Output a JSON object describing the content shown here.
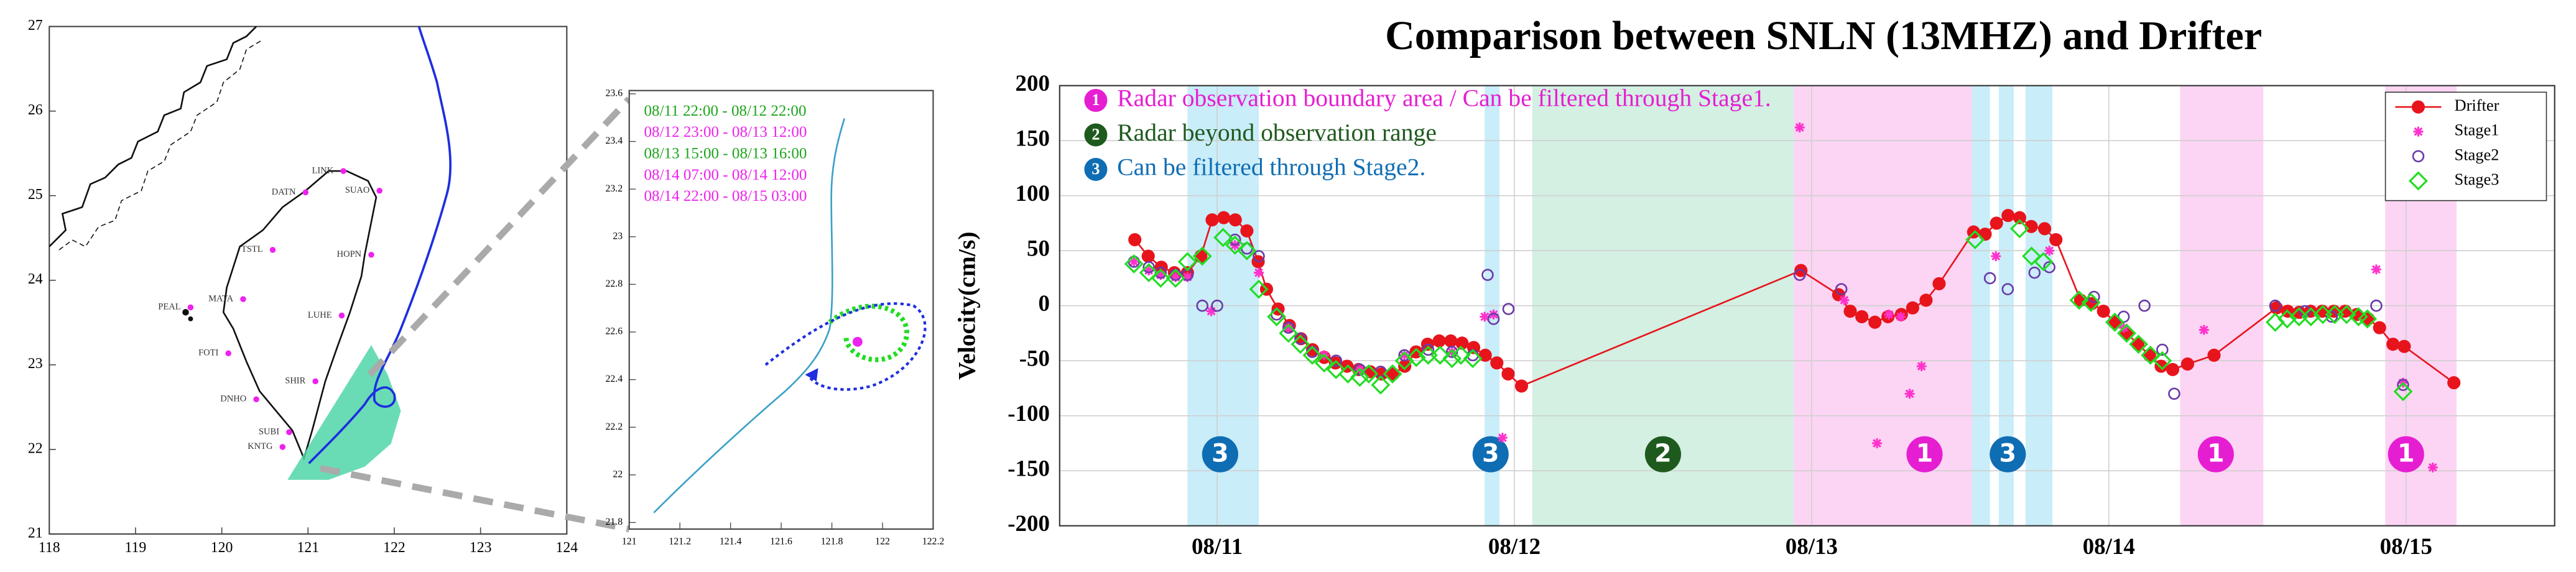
{
  "map": {
    "xticks": [
      118,
      119,
      120,
      121,
      122,
      123,
      124
    ],
    "yticks": [
      21,
      22,
      23,
      24,
      25,
      26,
      27
    ],
    "stations": [
      "DATN",
      "LINK",
      "SUAO",
      "HOPN",
      "TSTL",
      "MATA",
      "PEAL",
      "FOTI",
      "LUHE",
      "SHIR",
      "DNHO",
      "SUBI",
      "KNTG"
    ]
  },
  "zoom": {
    "xticks": [
      121,
      121.2,
      121.4,
      121.6,
      121.8,
      122,
      122.2
    ],
    "yticks": [
      21.8,
      22,
      22.2,
      22.4,
      22.6,
      22.8,
      23,
      23.2,
      23.4,
      23.6
    ],
    "legend": [
      {
        "text": "08/11 22:00 - 08/12 22:00",
        "color": "#1ea51e"
      },
      {
        "text": "08/12 23:00 - 08/13 12:00",
        "color": "#ee22ee"
      },
      {
        "text": "08/13 15:00 - 08/13 16:00",
        "color": "#1ea51e"
      },
      {
        "text": "08/14 07:00 - 08/14 12:00",
        "color": "#ee22ee"
      },
      {
        "text": "08/14 22:00 - 08/15 03:00",
        "color": "#ee22ee"
      }
    ]
  },
  "chart_data": {
    "type": "line",
    "title": "Comparison between SNLN (13MHZ) and Drifter",
    "y_label": "Velocity(cm/s)",
    "xlim": [
      10.47,
      15.5
    ],
    "xticks": [
      {
        "value": 11,
        "label": "08/11"
      },
      {
        "value": 12,
        "label": "08/12"
      },
      {
        "value": 13,
        "label": "08/13"
      },
      {
        "value": 14,
        "label": "08/14"
      },
      {
        "value": 15,
        "label": "08/15"
      }
    ],
    "ylim": [
      -200,
      200
    ],
    "yticks": [
      -200,
      -150,
      -100,
      -50,
      0,
      50,
      100,
      150,
      200
    ],
    "grid": true,
    "legend": "upper right",
    "bands": [
      {
        "x": [
          10.9,
          11.14
        ],
        "color": "#c9edf9"
      },
      {
        "x": [
          11.9,
          11.95
        ],
        "color": "#c9edf9"
      },
      {
        "x": [
          12.06,
          12.94
        ],
        "color": "#d3f0e3"
      },
      {
        "x": [
          12.94,
          13.54
        ],
        "color": "#fbd5f3"
      },
      {
        "x": [
          13.54,
          13.6
        ],
        "color": "#c9edf9"
      },
      {
        "x": [
          13.63,
          13.68
        ],
        "color": "#c9edf9"
      },
      {
        "x": [
          13.72,
          13.81
        ],
        "color": "#c9edf9"
      },
      {
        "x": [
          14.24,
          14.52
        ],
        "color": "#fbd5f3"
      },
      {
        "x": [
          14.93,
          15.17
        ],
        "color": "#fbd5f3"
      }
    ],
    "band_labels": [
      {
        "x": 11.01,
        "y": -135,
        "label": "3",
        "color": "#0f6db3"
      },
      {
        "x": 11.92,
        "y": -135,
        "label": "3",
        "color": "#0f6db3"
      },
      {
        "x": 12.5,
        "y": -135,
        "label": "2",
        "color": "#1e5a1e"
      },
      {
        "x": 13.38,
        "y": -135,
        "label": "1",
        "color": "#e61ed2"
      },
      {
        "x": 13.66,
        "y": -135,
        "label": "3",
        "color": "#0f6db3"
      },
      {
        "x": 14.36,
        "y": -135,
        "label": "1",
        "color": "#e61ed2"
      },
      {
        "x": 15.0,
        "y": -135,
        "label": "1",
        "color": "#e61ed2"
      }
    ],
    "annotations": [
      {
        "number": "1",
        "text": "Radar observation boundary area / Can be filtered through Stage1.",
        "color": "#e61ed2"
      },
      {
        "number": "2",
        "text": "Radar beyond observation range",
        "color": "#1e5a1e"
      },
      {
        "number": "3",
        "text": "Can be filtered through Stage2.",
        "color": "#0f6db3"
      }
    ],
    "series": [
      {
        "name": "Drifter",
        "color": "#e8141c",
        "marker": "circle-filled",
        "line": true,
        "x": [
          10.723,
          10.768,
          10.812,
          10.856,
          10.9,
          10.945,
          10.983,
          11.022,
          11.061,
          11.1,
          11.138,
          11.166,
          11.205,
          11.243,
          11.282,
          11.321,
          11.36,
          11.398,
          11.437,
          11.476,
          11.515,
          11.553,
          11.592,
          11.631,
          11.669,
          11.708,
          11.747,
          11.786,
          11.824,
          11.863,
          11.902,
          11.941,
          11.979,
          12.024,
          12.964,
          13.091,
          13.13,
          13.169,
          13.213,
          13.257,
          13.302,
          13.34,
          13.385,
          13.429,
          13.545,
          13.584,
          13.622,
          13.661,
          13.7,
          13.739,
          13.784,
          13.822,
          13.905,
          13.943,
          13.982,
          14.021,
          14.06,
          14.098,
          14.137,
          14.176,
          14.215,
          14.265,
          14.354,
          14.564,
          14.602,
          14.641,
          14.679,
          14.718,
          14.757,
          14.795,
          14.834,
          14.873,
          14.911,
          14.956,
          14.994,
          15.161
        ],
        "values": [
          60,
          45,
          35,
          30,
          30,
          45,
          78,
          80,
          78,
          68,
          40,
          15,
          -3,
          -18,
          -30,
          -40,
          -47,
          -52,
          -55,
          -58,
          -60,
          -62,
          -62,
          -55,
          -42,
          -35,
          -32,
          -32,
          -34,
          -38,
          -45,
          -52,
          -62,
          -73,
          32,
          10,
          -5,
          -10,
          -15,
          -10,
          -8,
          -2,
          5,
          20,
          67,
          65,
          75,
          82,
          80,
          72,
          70,
          60,
          5,
          2,
          -5,
          -15,
          -25,
          -35,
          -45,
          -55,
          -58,
          -53,
          -45,
          -2,
          -5,
          -6,
          -5,
          -5,
          -5,
          -5,
          -8,
          -12,
          -20,
          -35,
          -37,
          -70
        ]
      },
      {
        "name": "Stage1",
        "color": "#ff33cc",
        "marker": "asterisk",
        "line": false,
        "x": [
          10.72,
          10.77,
          10.81,
          10.86,
          10.9,
          10.98,
          11.06,
          11.14,
          11.24,
          11.36,
          11.48,
          11.63,
          11.79,
          11.9,
          11.93,
          11.96,
          12.96,
          13.11,
          13.22,
          13.26,
          13.3,
          13.33,
          13.37,
          13.62,
          13.8,
          14.05,
          14.32,
          14.9,
          14.99,
          15.09
        ],
        "values": [
          40,
          32,
          28,
          26,
          26,
          -5,
          55,
          30,
          -20,
          -45,
          -58,
          -45,
          -42,
          -10,
          -8,
          -120,
          162,
          5,
          -125,
          -8,
          -10,
          -80,
          -55,
          45,
          50,
          -20,
          -22,
          33,
          -70,
          -147
        ]
      },
      {
        "name": "Stage2",
        "color": "#6a3aa8",
        "marker": "circle-open",
        "line": false,
        "x": [
          10.72,
          10.77,
          10.81,
          10.86,
          10.9,
          10.95,
          11.0,
          11.06,
          11.1,
          11.14,
          11.2,
          11.24,
          11.28,
          11.32,
          11.4,
          11.48,
          11.55,
          11.63,
          11.71,
          11.79,
          11.86,
          11.91,
          11.93,
          11.98,
          12.96,
          13.1,
          13.6,
          13.66,
          13.75,
          13.8,
          13.95,
          14.05,
          14.12,
          14.18,
          14.22,
          14.56,
          14.66,
          14.75,
          14.9,
          14.99
        ],
        "values": [
          40,
          35,
          30,
          28,
          28,
          0,
          0,
          60,
          52,
          45,
          -8,
          -20,
          -30,
          -42,
          -50,
          -58,
          -60,
          -45,
          -40,
          -42,
          -45,
          28,
          -12,
          -3,
          28,
          15,
          25,
          15,
          30,
          35,
          8,
          -10,
          0,
          -40,
          -80,
          0,
          -5,
          -10,
          0,
          -72
        ]
      },
      {
        "name": "Stage3",
        "color": "#22dd22",
        "marker": "diamond",
        "line": false,
        "x": [
          10.72,
          10.77,
          10.81,
          10.86,
          10.9,
          10.95,
          11.02,
          11.06,
          11.1,
          11.14,
          11.2,
          11.24,
          11.28,
          11.32,
          11.36,
          11.4,
          11.44,
          11.48,
          11.51,
          11.55,
          11.59,
          11.63,
          11.67,
          11.71,
          11.75,
          11.79,
          11.82,
          11.86,
          13.55,
          13.7,
          13.74,
          13.78,
          13.9,
          13.94,
          14.02,
          14.06,
          14.1,
          14.14,
          14.18,
          14.56,
          14.6,
          14.64,
          14.68,
          14.72,
          14.76,
          14.8,
          14.84,
          14.87,
          14.99
        ],
        "values": [
          38,
          30,
          25,
          25,
          40,
          45,
          62,
          55,
          50,
          15,
          -10,
          -25,
          -35,
          -45,
          -52,
          -58,
          -62,
          -65,
          -62,
          -72,
          -62,
          -50,
          -47,
          -45,
          -45,
          -48,
          -45,
          -48,
          60,
          70,
          45,
          40,
          5,
          3,
          -15,
          -25,
          -35,
          -45,
          -50,
          -15,
          -12,
          -10,
          -10,
          -8,
          -8,
          -8,
          -10,
          -12,
          -78
        ]
      }
    ]
  }
}
